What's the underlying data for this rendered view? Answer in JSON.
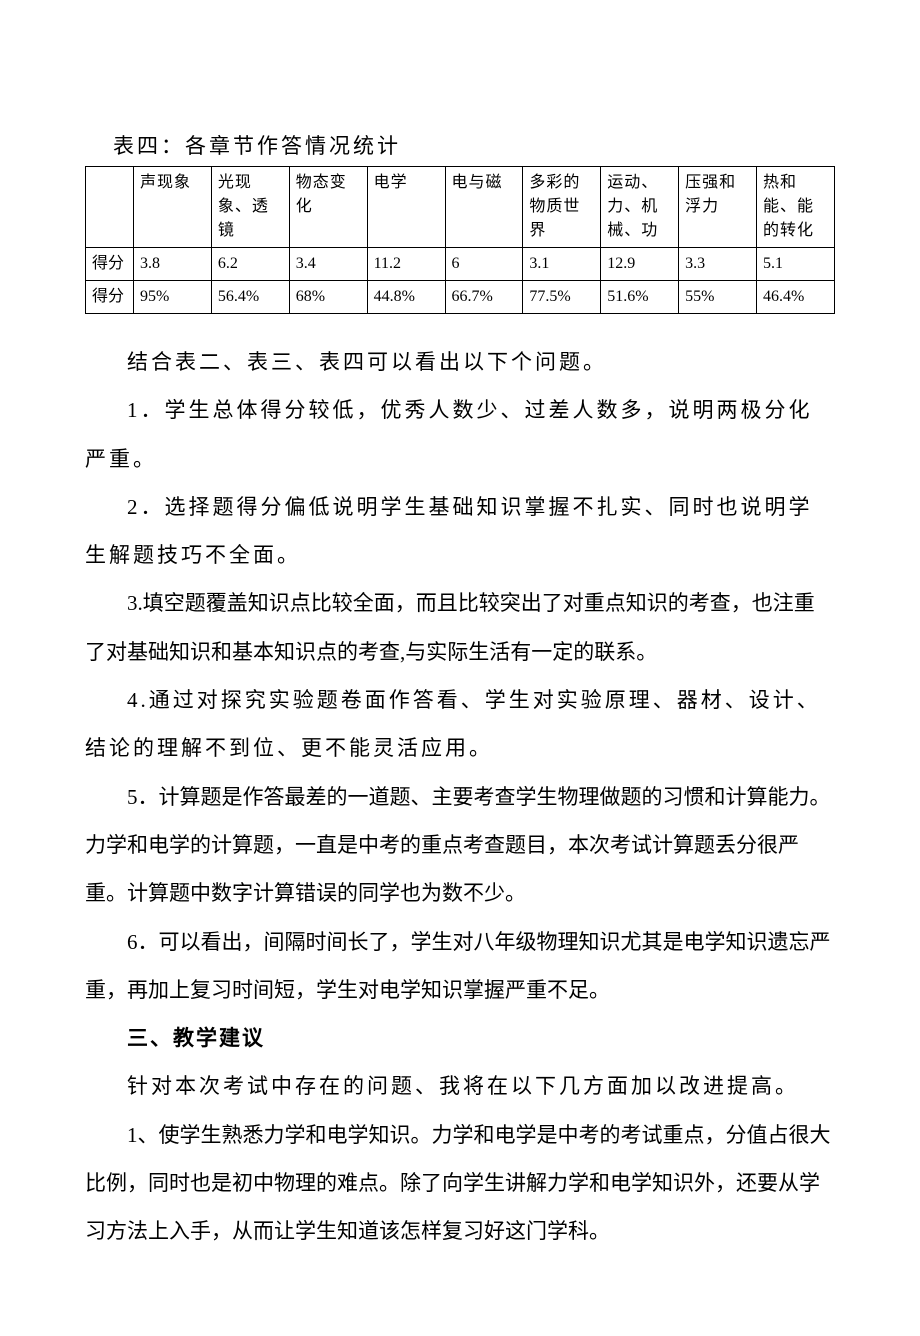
{
  "table": {
    "title": "表四：各章节作答情况统计",
    "headers": [
      "声现象",
      "光现象、透镜",
      "物态变化",
      "电学",
      "电与磁",
      "多彩的物质世界",
      "运动、力、机械、功",
      "压强和浮力",
      "热和能、能的转化"
    ],
    "rows": [
      {
        "label": "得分",
        "cells": [
          "3.8",
          "6.2",
          "3.4",
          "11.2",
          "6",
          "3.1",
          "12.9",
          "3.3",
          "5.1"
        ]
      },
      {
        "label": "得分",
        "cells": [
          "95%",
          "56.4%",
          "68%",
          "44.8%",
          "66.7%",
          "77.5%",
          "51.6%",
          "55%",
          "46.4%"
        ]
      }
    ]
  },
  "paragraphs": {
    "p1": "结合表二、表三、表四可以看出以下个问题。",
    "p2": "1．学生总体得分较低，优秀人数少、过差人数多，说明两极分化严重。",
    "p3": "2．选择题得分偏低说明学生基础知识掌握不扎实、同时也说明学生解题技巧不全面。",
    "p4": "3.填空题覆盖知识点比较全面，而且比较突出了对重点知识的考查，也注重了对基础知识和基本知识点的考查,与实际生活有一定的联系。",
    "p5": "4.通过对探究实验题卷面作答看、学生对实验原理、器材、设计、结论的理解不到位、更不能灵活应用。",
    "p6": "5．计算题是作答最差的一道题、主要考查学生物理做题的习惯和计算能力。力学和电学的计算题，一直是中考的重点考查题目，本次考试计算题丢分很严重。计算题中数字计算错误的同学也为数不少。",
    "p7": "6．可以看出，间隔时间长了，学生对八年级物理知识尤其是电学知识遗忘严重，再加上复习时间短，学生对电学知识掌握严重不足。",
    "heading": "三、教学建议",
    "p8": "针对本次考试中存在的问题、我将在以下几方面加以改进提高。",
    "p9": "1、使学生熟悉力学和电学知识。力学和电学是中考的考试重点，分值占很大比例，同时也是初中物理的难点。除了向学生讲解力学和电学知识外，还要从学习方法上入手，从而让学生知道该怎样复习好这门学科。"
  }
}
